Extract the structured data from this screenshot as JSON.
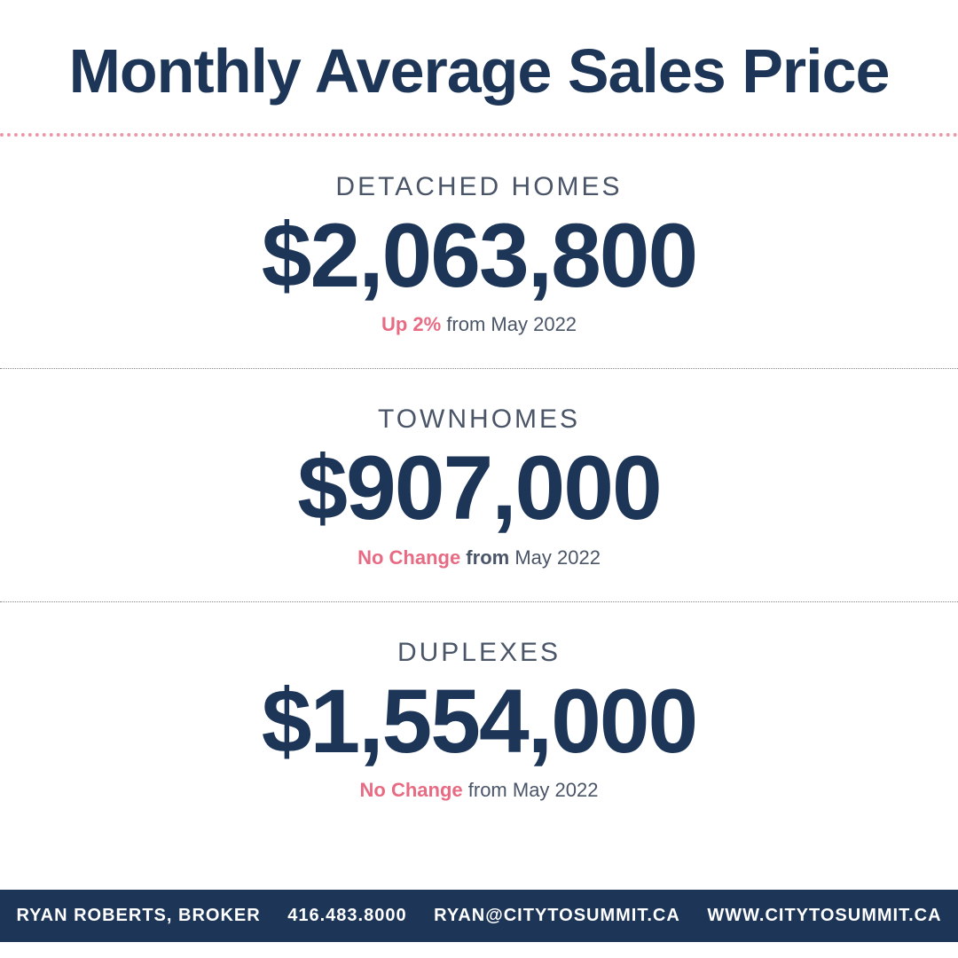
{
  "title": "Monthly Average Sales Price",
  "colors": {
    "primary": "#1d3557",
    "accent": "#e86b84",
    "divider_pink": "#e89aa8",
    "text_muted": "#4a5568",
    "background": "#ffffff"
  },
  "typography": {
    "title_fontsize": 70,
    "category_fontsize": 30,
    "price_fontsize": 102,
    "change_fontsize": 22,
    "footer_fontsize": 20
  },
  "sections": [
    {
      "category": "DETACHED HOMES",
      "price": "$2,063,800",
      "change_highlight": "Up 2%",
      "change_from_bold": "",
      "change_rest": " from May 2022"
    },
    {
      "category": "TOWNHOMES",
      "price": "$907,000",
      "change_highlight": "No Change",
      "change_from_bold": " from ",
      "change_rest": " May 2022"
    },
    {
      "category": "DUPLEXES",
      "price": "$1,554,000",
      "change_highlight": "No Change",
      "change_from_bold": "",
      "change_rest": " from May 2022"
    }
  ],
  "footer": {
    "name": "RYAN ROBERTS, BROKER",
    "phone": "416.483.8000",
    "email": "RYAN@CITYTOSUMMIT.CA",
    "website": "WWW.CITYTOSUMMIT.CA"
  }
}
